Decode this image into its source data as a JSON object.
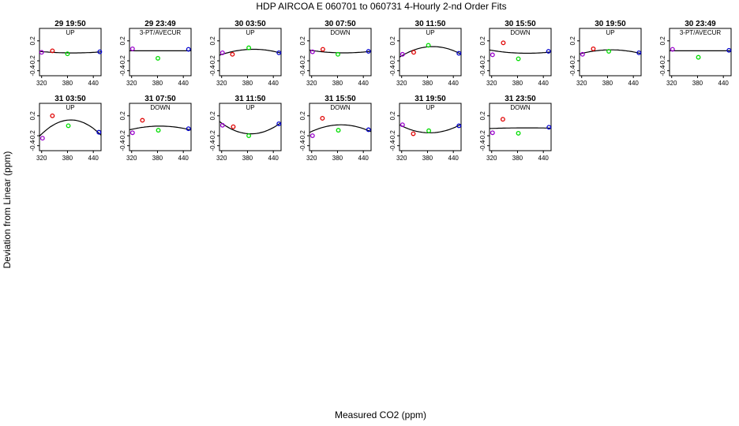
{
  "title": "HDP   AIRCOA E   060701 to 060731   4-Hourly 2-nd Order Fits",
  "xlabel": "Measured CO2 (ppm)",
  "ylabel": "Deviation from Linear (ppm)",
  "colors": {
    "p1": "#9900cc",
    "p2": "#e00000",
    "p3": "#00dd00",
    "p4": "#0000cc",
    "curve": "#000000"
  },
  "chart_data": [
    {
      "type": "scatter",
      "title": "29 19:50",
      "subtitle": "UP",
      "x": [
        320,
        345,
        380,
        455
      ],
      "y": [
        -0.03,
        0.0,
        -0.06,
        -0.02
      ],
      "fit": "quadratic",
      "xticks": [
        320,
        380,
        440
      ],
      "yticks": [
        -0.4,
        -0.2,
        0.2
      ],
      "xlim": [
        315,
        458
      ],
      "ylim": [
        -0.5,
        0.45
      ]
    },
    {
      "type": "scatter",
      "title": "29 23:49",
      "subtitle": "3-PT/AVECUR",
      "x": [
        322,
        381,
        452
      ],
      "y": [
        0.04,
        -0.15,
        0.03
      ],
      "fit": "linear",
      "xticks": [
        320,
        380,
        440
      ],
      "yticks": [
        -0.4,
        -0.2,
        0.2
      ],
      "xlim": [
        315,
        458
      ],
      "ylim": [
        -0.5,
        0.45
      ]
    },
    {
      "type": "scatter",
      "title": "30 03:50",
      "subtitle": "UP",
      "x": [
        322,
        345,
        383,
        453
      ],
      "y": [
        -0.04,
        -0.07,
        0.06,
        -0.04
      ],
      "fit": "quadratic",
      "xticks": [
        320,
        380,
        440
      ],
      "yticks": [
        -0.4,
        -0.2,
        0.2
      ],
      "xlim": [
        315,
        458
      ],
      "ylim": [
        -0.5,
        0.45
      ]
    },
    {
      "type": "scatter",
      "title": "30 07:50",
      "subtitle": "DOWN",
      "x": [
        322,
        346,
        381,
        452
      ],
      "y": [
        -0.02,
        0.03,
        -0.07,
        -0.01
      ],
      "fit": "quadratic",
      "xticks": [
        320,
        380,
        440
      ],
      "yticks": [
        -0.4,
        -0.2,
        0.2
      ],
      "xlim": [
        315,
        458
      ],
      "ylim": [
        -0.5,
        0.45
      ]
    },
    {
      "type": "scatter",
      "title": "30 11:50",
      "subtitle": "UP",
      "x": [
        322,
        348,
        382,
        453
      ],
      "y": [
        -0.07,
        -0.03,
        0.11,
        -0.05
      ],
      "fit": "quadratic",
      "xticks": [
        320,
        380,
        440
      ],
      "yticks": [
        -0.4,
        -0.2,
        0.2
      ],
      "xlim": [
        315,
        458
      ],
      "ylim": [
        -0.5,
        0.45
      ]
    },
    {
      "type": "scatter",
      "title": "30 15:50",
      "subtitle": "DOWN",
      "x": [
        322,
        347,
        382,
        452
      ],
      "y": [
        -0.08,
        0.16,
        -0.16,
        -0.01
      ],
      "fit": "quadratic",
      "xticks": [
        320,
        380,
        440
      ],
      "yticks": [
        -0.4,
        -0.2,
        0.2
      ],
      "xlim": [
        315,
        458
      ],
      "ylim": [
        -0.5,
        0.45
      ]
    },
    {
      "type": "scatter",
      "title": "30 19:50",
      "subtitle": "UP",
      "x": [
        322,
        347,
        383,
        453
      ],
      "y": [
        -0.07,
        0.04,
        -0.01,
        -0.04
      ],
      "fit": "quadratic",
      "xticks": [
        320,
        380,
        440
      ],
      "yticks": [
        -0.4,
        -0.2,
        0.2
      ],
      "xlim": [
        315,
        458
      ],
      "ylim": [
        -0.5,
        0.45
      ]
    },
    {
      "type": "scatter",
      "title": "30 23:49",
      "subtitle": "3-PT/AVECUR",
      "x": [
        322,
        382,
        453
      ],
      "y": [
        0.03,
        -0.13,
        0.01
      ],
      "fit": "linear",
      "xticks": [
        320,
        380,
        440
      ],
      "yticks": [
        -0.4,
        -0.2,
        0.2
      ],
      "xlim": [
        315,
        458
      ],
      "ylim": [
        -0.5,
        0.45
      ]
    },
    {
      "type": "scatter",
      "title": "31 03:50",
      "subtitle": "UP",
      "x": [
        322,
        345,
        382,
        453
      ],
      "y": [
        -0.25,
        0.2,
        0.0,
        -0.13
      ],
      "fit": "quadratic",
      "xticks": [
        320,
        380,
        440
      ],
      "yticks": [
        -0.4,
        -0.2,
        0.2
      ],
      "xlim": [
        315,
        458
      ],
      "ylim": [
        -0.5,
        0.45
      ]
    },
    {
      "type": "scatter",
      "title": "31 07:50",
      "subtitle": "DOWN",
      "x": [
        322,
        345,
        382,
        452
      ],
      "y": [
        -0.14,
        0.11,
        -0.09,
        -0.06
      ],
      "fit": "quadratic",
      "xticks": [
        320,
        380,
        440
      ],
      "yticks": [
        -0.4,
        -0.2,
        0.2
      ],
      "xlim": [
        315,
        458
      ],
      "ylim": [
        -0.5,
        0.45
      ]
    },
    {
      "type": "scatter",
      "title": "31 11:50",
      "subtitle": "UP",
      "x": [
        322,
        347,
        383,
        453
      ],
      "y": [
        0.01,
        -0.02,
        -0.2,
        0.04
      ],
      "fit": "quadratic",
      "xticks": [
        320,
        380,
        440
      ],
      "yticks": [
        -0.4,
        -0.2,
        0.2
      ],
      "xlim": [
        315,
        458
      ],
      "ylim": [
        -0.5,
        0.45
      ]
    },
    {
      "type": "scatter",
      "title": "31 15:50",
      "subtitle": "DOWN",
      "x": [
        322,
        345,
        382,
        452
      ],
      "y": [
        -0.2,
        0.15,
        -0.09,
        -0.08
      ],
      "fit": "quadratic",
      "xticks": [
        320,
        380,
        440
      ],
      "yticks": [
        -0.4,
        -0.2,
        0.2
      ],
      "xlim": [
        315,
        458
      ],
      "ylim": [
        -0.5,
        0.45
      ]
    },
    {
      "type": "scatter",
      "title": "31 19:50",
      "subtitle": "UP",
      "x": [
        322,
        347,
        383,
        453
      ],
      "y": [
        0.02,
        -0.16,
        -0.1,
        0.0
      ],
      "fit": "quadratic",
      "xticks": [
        320,
        380,
        440
      ],
      "yticks": [
        -0.4,
        -0.2,
        0.2
      ],
      "xlim": [
        315,
        458
      ],
      "ylim": [
        -0.5,
        0.45
      ]
    },
    {
      "type": "scatter",
      "title": "31 23:50",
      "subtitle": "DOWN",
      "x": [
        322,
        346,
        382,
        453
      ],
      "y": [
        -0.14,
        0.13,
        -0.15,
        -0.03
      ],
      "fit": "quadratic",
      "xticks": [
        320,
        380,
        440
      ],
      "yticks": [
        -0.4,
        -0.2,
        0.2
      ],
      "xlim": [
        315,
        458
      ],
      "ylim": [
        -0.5,
        0.45
      ]
    }
  ]
}
